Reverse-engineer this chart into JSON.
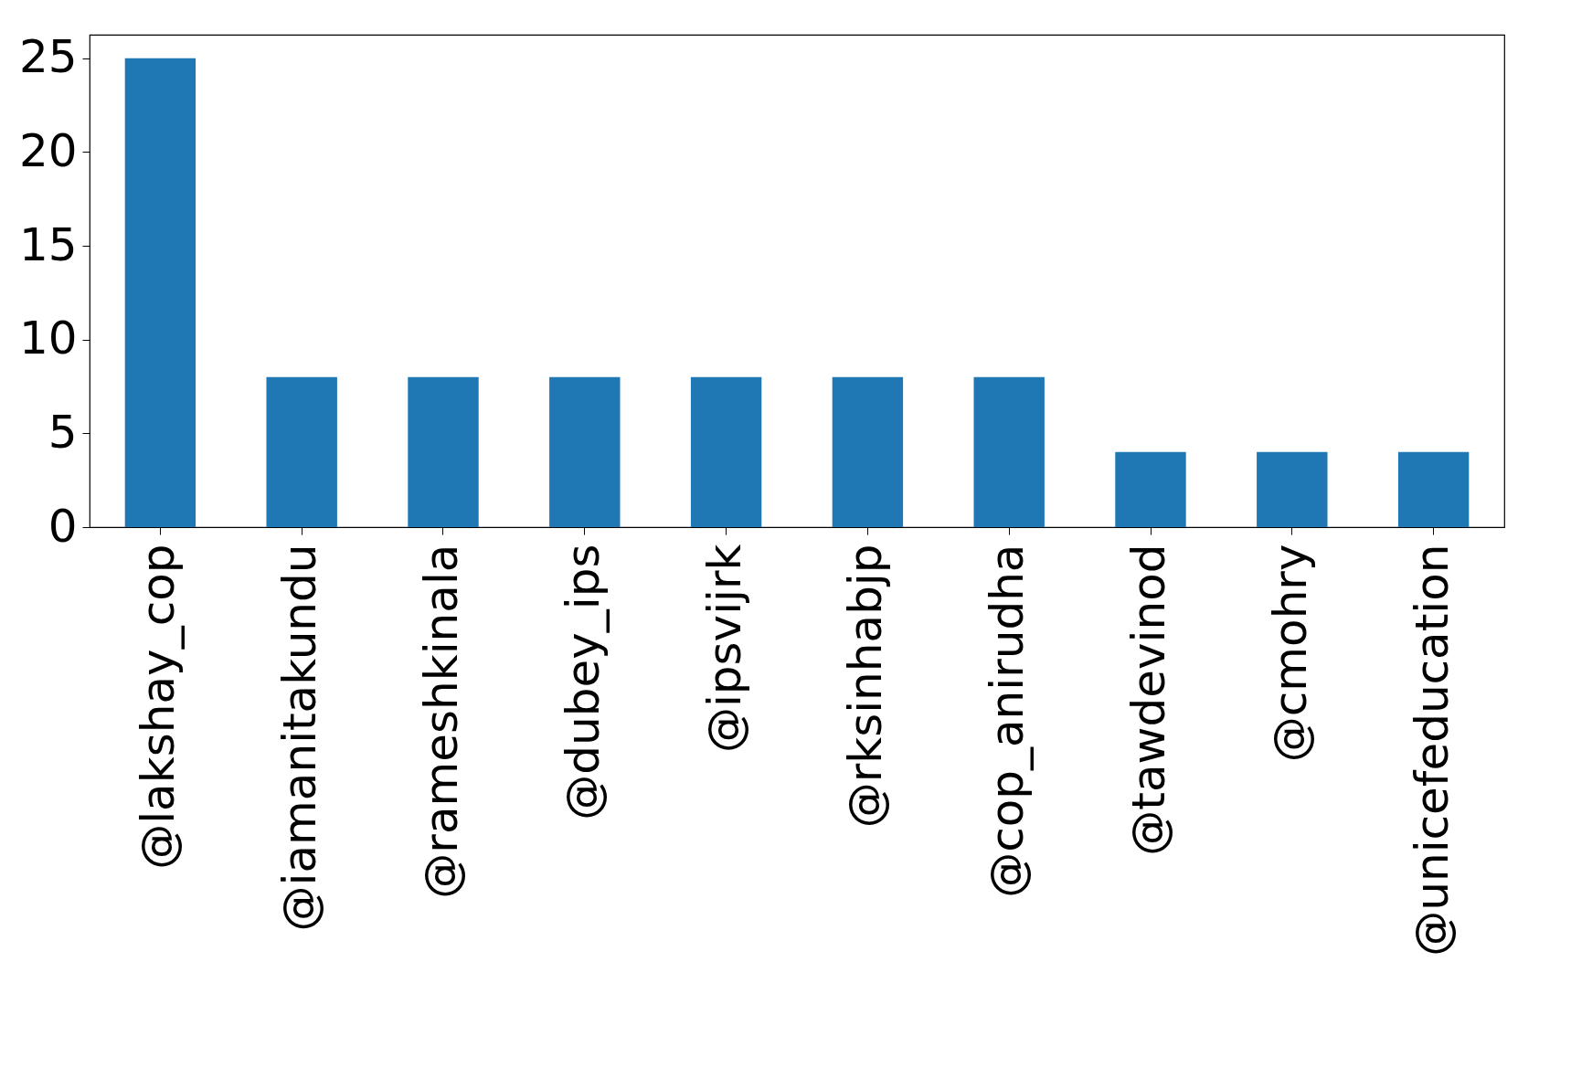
{
  "chart_data": {
    "type": "bar",
    "categories": [
      "@lakshay_cop",
      "@iamanitakundu",
      "@rameshkinala",
      "@dubey_ips",
      "@ipsvijrk",
      "@rksinhabjp",
      "@cop_anirudha",
      "@tawdevinod",
      "@cmohry",
      "@unicefeducation"
    ],
    "values": [
      25,
      8,
      8,
      8,
      8,
      8,
      8,
      4,
      4,
      4
    ],
    "color": "#1f77b4",
    "ylim": [
      0,
      26.25
    ],
    "yticks": [
      0,
      5,
      10,
      15,
      20,
      25
    ],
    "grid": false
  }
}
